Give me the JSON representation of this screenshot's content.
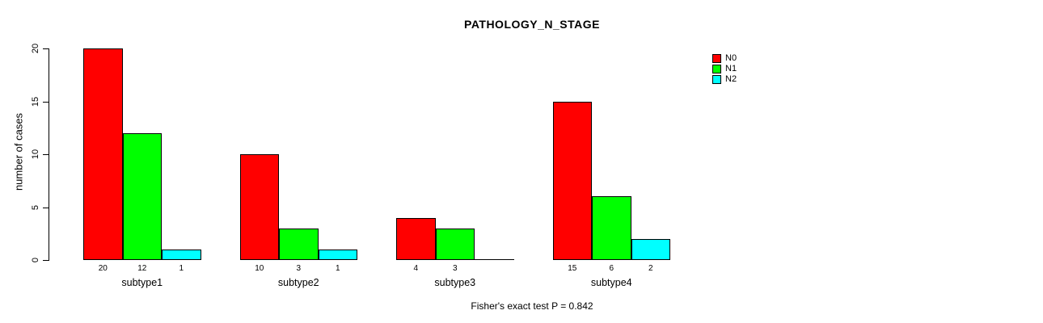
{
  "chart_data": {
    "type": "bar",
    "title": "PATHOLOGY_N_STAGE",
    "xlabel": "",
    "ylabel": "number of cases",
    "ylim": [
      0,
      20
    ],
    "yticks": [
      0,
      5,
      10,
      15,
      20
    ],
    "categories": [
      "subtype1",
      "subtype2",
      "subtype3",
      "subtype4"
    ],
    "series": [
      {
        "name": "N0",
        "color": "#FF0000",
        "values": [
          20,
          10,
          4,
          15
        ]
      },
      {
        "name": "N1",
        "color": "#00FF00",
        "values": [
          12,
          3,
          3,
          6
        ]
      },
      {
        "name": "N2",
        "color": "#00FFFF",
        "values": [
          1,
          1,
          0,
          2
        ]
      }
    ],
    "bar_value_labels": [
      [
        "20",
        "12",
        "1"
      ],
      [
        "10",
        "3",
        "1"
      ],
      [
        "4",
        "3",
        ""
      ],
      [
        "15",
        "6",
        "2"
      ]
    ],
    "legend_position": "top-right",
    "grid": false,
    "footnote": "Fisher's exact test P = 0.842"
  },
  "colors": {
    "background": "#FFFFFF",
    "axis": "#000000",
    "text": "#000000",
    "bar_border": "#000000"
  }
}
